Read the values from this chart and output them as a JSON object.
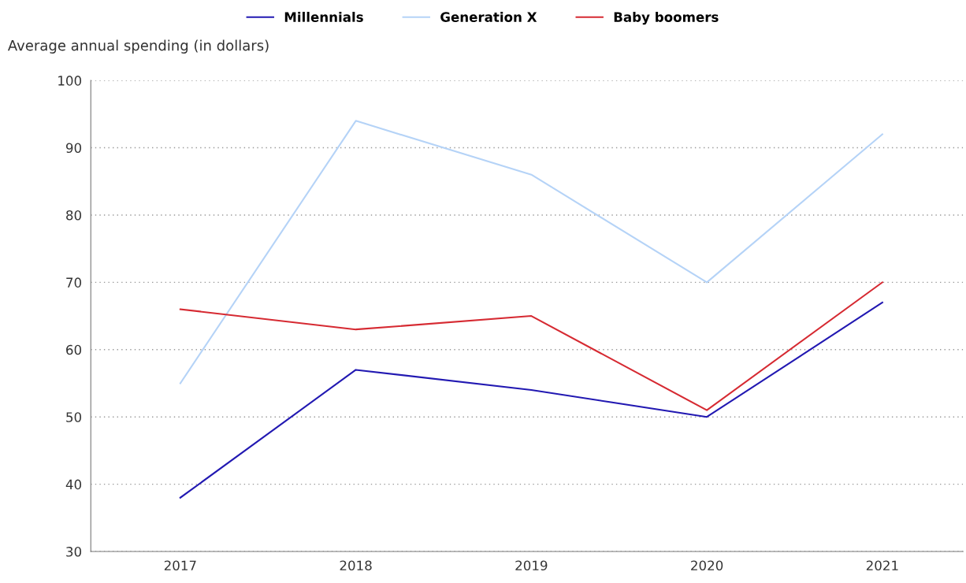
{
  "chart_data": {
    "type": "line",
    "ylabel": "Average annual spending (in dollars)",
    "categories": [
      "2017",
      "2018",
      "2019",
      "2020",
      "2021"
    ],
    "series": [
      {
        "name": "Millennials",
        "color": "#2219b2",
        "values": [
          38,
          57,
          54,
          50,
          67
        ]
      },
      {
        "name": "Generation X",
        "color": "#b5d3f7",
        "values": [
          55,
          94,
          86,
          70,
          92
        ]
      },
      {
        "name": "Baby boomers",
        "color": "#d62a32",
        "values": [
          66,
          63,
          65,
          51,
          70
        ]
      }
    ],
    "ylim": [
      30,
      100
    ],
    "yticks": [
      30,
      40,
      50,
      60,
      70,
      80,
      90,
      100
    ],
    "grid": "y",
    "legend": "top",
    "marker": "none",
    "line_style": "solid"
  }
}
